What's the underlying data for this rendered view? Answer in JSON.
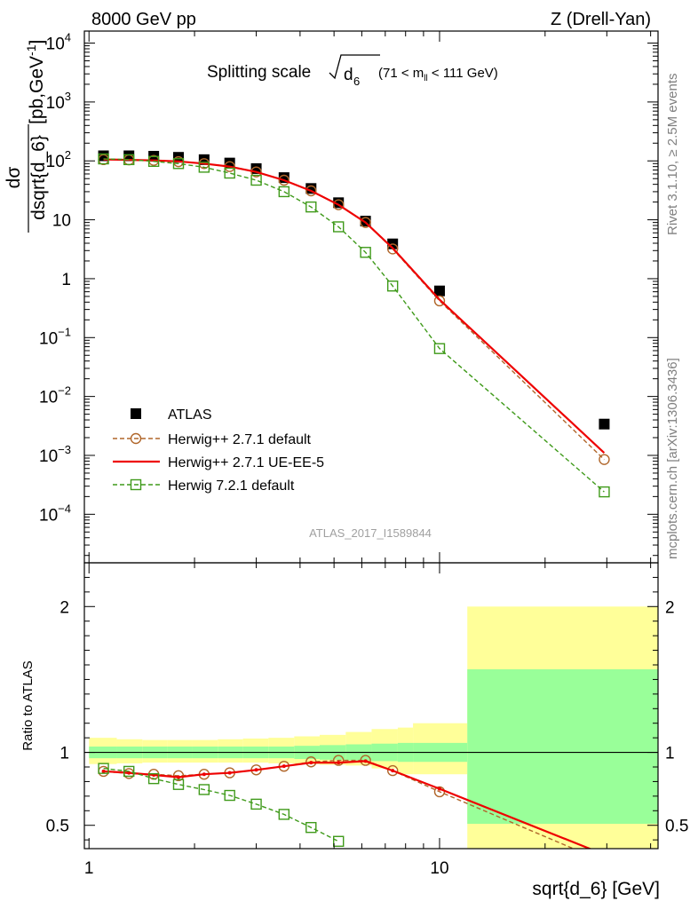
{
  "header": {
    "left": "8000 GeV pp",
    "right": "Z (Drell-Yan)"
  },
  "side_text": {
    "rivet": "Rivet 3.1.10, ≥ 2.5M events",
    "mcplots": "mcplots.cern.ch [arXiv:1306.3436]"
  },
  "watermark": "ATLAS_2017_I1589844",
  "colors": {
    "data": "#000000",
    "herwigpp_default": "#b0662a",
    "herwigpp_ueee5": "#ee0000",
    "herwig7": "#3f9a1a",
    "band_inner": "#99ff99",
    "band_outer": "#ffff99"
  },
  "chart_data": [
    {
      "type": "scatter",
      "panel": "main",
      "title_prefix": "Splitting scale",
      "title_symbol": "d",
      "title_subscript": "6",
      "title_cut": "(71 < m",
      "title_cut_sub": "ll",
      "title_cut_end": " < 111 GeV)",
      "ylabel_num": "dσ",
      "ylabel_den": "dsqrt{d_6}",
      "ylabel_units": "[pb,GeV",
      "ylabel_units_sup": "-1",
      "ylabel_units_end": "]",
      "yscale": "log",
      "xscale": "log",
      "xlim": [
        0.97,
        42
      ],
      "ylim": [
        1.5e-05,
        16000.0
      ],
      "ytick_labels": [
        {
          "base": "10",
          "exp": "4",
          "v": 10000
        },
        {
          "base": "10",
          "exp": "3",
          "v": 1000
        },
        {
          "base": "10",
          "exp": "2",
          "v": 100
        },
        {
          "base": "10",
          "exp": "",
          "v": 10
        },
        {
          "base": "1",
          "exp": "",
          "v": 1
        },
        {
          "base": "10",
          "exp": "−1",
          "v": 0.1
        },
        {
          "base": "10",
          "exp": "−2",
          "v": 0.01
        },
        {
          "base": "10",
          "exp": "−3",
          "v": 0.001
        },
        {
          "base": "10",
          "exp": "−4",
          "v": 0.0001
        }
      ],
      "legend_position": "lower-left",
      "series": [
        {
          "name": "ATLAS",
          "marker": "square-filled",
          "x": [
            1.1,
            1.3,
            1.53,
            1.8,
            2.13,
            2.52,
            3.0,
            3.6,
            4.3,
            5.15,
            6.15,
            7.35,
            10.0,
            29.5
          ],
          "values": [
            122,
            122,
            120,
            115,
            105,
            92,
            74,
            52,
            34,
            19.5,
            9.5,
            3.9,
            0.62,
            0.0034
          ]
        },
        {
          "name": "Herwig++ 2.7.1 default",
          "marker": "circle-open",
          "line": "dashed",
          "x": [
            1.1,
            1.3,
            1.53,
            1.8,
            2.13,
            2.52,
            3.0,
            3.6,
            4.3,
            5.15,
            6.15,
            7.35,
            10.0,
            29.5
          ],
          "values": [
            105,
            104,
            102,
            97,
            90,
            80,
            65,
            47,
            31,
            18,
            9.0,
            3.2,
            0.42,
            0.00085
          ]
        },
        {
          "name": "Herwig++ 2.7.1 UE-EE-5",
          "marker": "none",
          "line": "solid",
          "x": [
            1.1,
            1.3,
            1.53,
            1.8,
            2.13,
            2.52,
            3.0,
            3.6,
            4.3,
            5.15,
            6.15,
            7.35,
            10.0,
            29.5
          ],
          "values": [
            106,
            104,
            102,
            98,
            90,
            80,
            65,
            47,
            31,
            18,
            9.0,
            3.3,
            0.44,
            0.0011
          ]
        },
        {
          "name": "Herwig 7.2.1 default",
          "marker": "square-open",
          "line": "dashed",
          "x": [
            1.1,
            1.3,
            1.53,
            1.8,
            2.13,
            2.52,
            3.0,
            3.6,
            4.3,
            5.15,
            6.15,
            7.35,
            10.0,
            29.5
          ],
          "values": [
            108,
            105,
            98,
            90,
            78,
            62,
            47,
            30,
            16.5,
            7.6,
            2.8,
            0.75,
            0.065,
            0.00024
          ]
        }
      ]
    },
    {
      "type": "line",
      "panel": "ratio",
      "ylabel": "Ratio to ATLAS",
      "xlabel": "sqrt{d_6} [GeV]",
      "xscale": "log",
      "xlim": [
        0.97,
        42
      ],
      "ylim": [
        0.34,
        2.3
      ],
      "ytick_labels": [
        "0.5",
        "1",
        "2"
      ],
      "ytick_values": [
        0.5,
        1,
        2
      ],
      "xtick_labels": [
        "1",
        "10"
      ],
      "xtick_values": [
        1,
        10
      ],
      "bands": {
        "edges": [
          1.0,
          1.2,
          1.42,
          1.67,
          1.97,
          2.33,
          2.75,
          3.25,
          3.85,
          4.55,
          5.4,
          6.4,
          7.6,
          8.4,
          12.0,
          42
        ],
        "inner_lo": [
          0.96,
          0.96,
          0.96,
          0.96,
          0.96,
          0.96,
          0.96,
          0.96,
          0.955,
          0.95,
          0.945,
          0.94,
          0.935,
          0.935,
          0.51
        ],
        "inner_hi": [
          1.04,
          1.04,
          1.04,
          1.04,
          1.04,
          1.04,
          1.04,
          1.04,
          1.045,
          1.05,
          1.055,
          1.06,
          1.065,
          1.065,
          1.57
        ],
        "outer_lo": [
          0.92,
          0.925,
          0.93,
          0.93,
          0.93,
          0.93,
          0.93,
          0.925,
          0.92,
          0.915,
          0.91,
          0.89,
          0.85,
          0.85,
          0.34
        ],
        "outer_hi": [
          1.1,
          1.09,
          1.085,
          1.085,
          1.085,
          1.09,
          1.095,
          1.1,
          1.11,
          1.12,
          1.14,
          1.16,
          1.17,
          1.2,
          2.0
        ]
      },
      "series": [
        {
          "name": "Herwig++ 2.7.1 default",
          "marker": "circle-open",
          "x": [
            1.1,
            1.3,
            1.53,
            1.8,
            2.13,
            2.52,
            3.0,
            3.6,
            4.3,
            5.15,
            6.15,
            7.35,
            10.0,
            29.5
          ],
          "values": [
            0.87,
            0.855,
            0.85,
            0.84,
            0.85,
            0.86,
            0.88,
            0.905,
            0.935,
            0.945,
            0.945,
            0.875,
            0.73,
            0.25
          ]
        },
        {
          "name": "Herwig++ 2.7.1 UE-EE-5",
          "marker": "none",
          "x": [
            1.1,
            1.3,
            1.53,
            1.8,
            2.13,
            2.52,
            3.0,
            3.6,
            4.3,
            5.15,
            6.15,
            7.35,
            10.0,
            29.5
          ],
          "values": [
            0.87,
            0.86,
            0.845,
            0.83,
            0.85,
            0.86,
            0.88,
            0.905,
            0.93,
            0.93,
            0.94,
            0.875,
            0.75,
            0.3
          ]
        },
        {
          "name": "Herwig 7.2.1 default",
          "marker": "square-open",
          "x": [
            1.1,
            1.3,
            1.53,
            1.8,
            2.13,
            2.52,
            3.0,
            3.6,
            4.3,
            5.15
          ],
          "values": [
            0.89,
            0.87,
            0.82,
            0.78,
            0.745,
            0.705,
            0.645,
            0.575,
            0.485,
            0.39
          ]
        }
      ]
    }
  ]
}
